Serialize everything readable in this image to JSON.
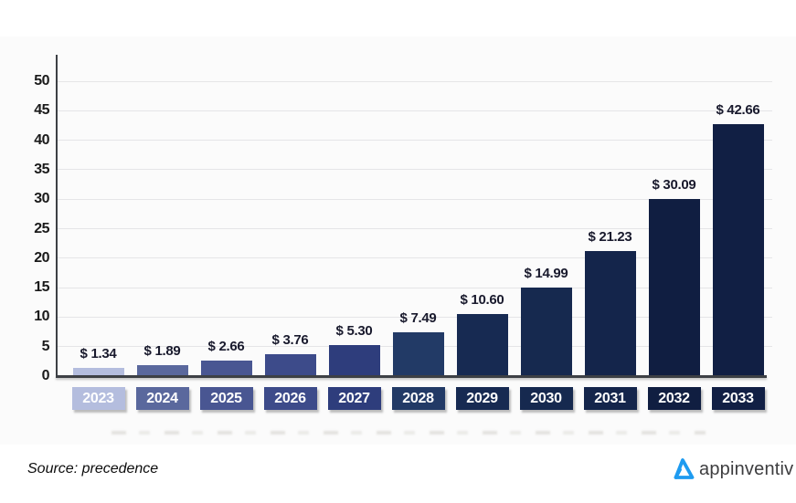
{
  "chart_data": {
    "type": "bar",
    "title": "",
    "categories": [
      "2023",
      "2024",
      "2025",
      "2026",
      "2027",
      "2028",
      "2029",
      "2030",
      "2031",
      "2032",
      "2033"
    ],
    "values": [
      1.34,
      1.89,
      2.66,
      3.76,
      5.3,
      7.49,
      10.6,
      14.99,
      21.23,
      30.09,
      42.66
    ],
    "value_labels": [
      "$ 1.34",
      "$ 1.89",
      "$ 2.66",
      "$ 3.76",
      "$ 5.30",
      "$ 7.49",
      "$ 10.60",
      "$ 14.99",
      "$ 21.23",
      "$ 30.09",
      "$ 42.66"
    ],
    "bar_colors": [
      "#b4bdde",
      "#5a689d",
      "#495692",
      "#3d4b8a",
      "#2e3d7c",
      "#223a66",
      "#172a52",
      "#16294f",
      "#14254b",
      "#101e41",
      "#111f44"
    ],
    "xlabel": "",
    "ylabel": "",
    "ylim": [
      0,
      50
    ],
    "yticks": [
      0,
      5,
      10,
      15,
      20,
      25,
      30,
      35,
      40,
      45,
      50
    ],
    "grid": true,
    "legend": "none"
  },
  "footer": {
    "source_label": "Source: precedence",
    "logo_text": "appinventiv"
  },
  "icons": {
    "logo_mark": "appinventiv-triangle-a-icon"
  },
  "colors": {
    "axis": "#3d4045",
    "gridline": "#e5e5e7",
    "value_label_text": "#191a2d",
    "tick_text": "#1a1a1a",
    "year_text": "#ffffff",
    "logo_blue": "#1e9bf0",
    "logo_text_color": "#3d3d3f",
    "chart_background": "#fbfbfb"
  }
}
